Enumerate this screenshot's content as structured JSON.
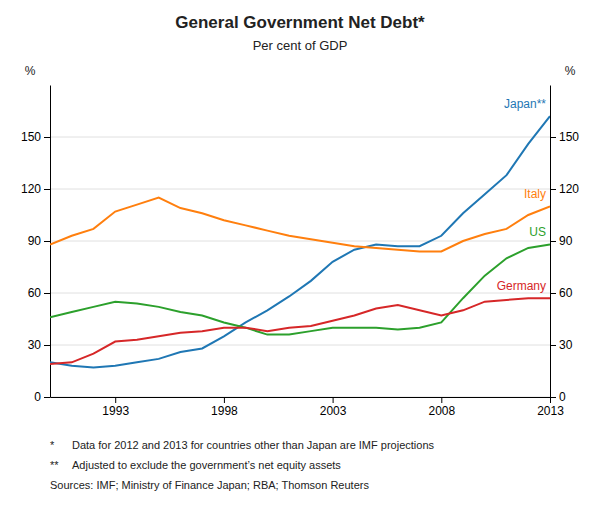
{
  "chart_data": {
    "type": "line",
    "title": "General Government Net Debt*",
    "subtitle": "Per cent of GDP",
    "ylabel": "%",
    "y2label": "%",
    "x": [
      1990,
      1991,
      1992,
      1993,
      1994,
      1995,
      1996,
      1997,
      1998,
      1999,
      2000,
      2001,
      2002,
      2003,
      2004,
      2005,
      2006,
      2007,
      2008,
      2009,
      2010,
      2011,
      2012,
      2013
    ],
    "xlim": [
      1990,
      2013
    ],
    "xticks": [
      1993,
      1998,
      2003,
      2008,
      2013
    ],
    "ylim": [
      0,
      180
    ],
    "yticks": [
      0,
      30,
      60,
      90,
      120,
      150
    ],
    "y2lim": [
      0,
      180
    ],
    "y2ticks": [
      0,
      30,
      60,
      90,
      120,
      150
    ],
    "grid": true,
    "series": [
      {
        "name": "Japan**",
        "values": [
          20,
          18,
          17,
          18,
          20,
          22,
          26,
          28,
          35,
          43,
          50,
          58,
          67,
          78,
          85,
          88,
          87,
          87,
          93,
          106,
          117,
          128,
          146,
          162
        ]
      },
      {
        "name": "Italy",
        "values": [
          88,
          93,
          97,
          107,
          111,
          115,
          109,
          106,
          102,
          99,
          96,
          93,
          91,
          89,
          87,
          86,
          85,
          84,
          84,
          90,
          94,
          97,
          105,
          110
        ]
      },
      {
        "name": "US",
        "values": [
          46,
          49,
          52,
          55,
          54,
          52,
          49,
          47,
          43,
          40,
          36,
          36,
          38,
          40,
          40,
          40,
          39,
          40,
          43,
          57,
          70,
          80,
          86,
          88
        ]
      },
      {
        "name": "Germany",
        "values": [
          19,
          20,
          25,
          32,
          33,
          35,
          37,
          38,
          40,
          40,
          38,
          40,
          41,
          44,
          47,
          51,
          53,
          50,
          47,
          50,
          55,
          56,
          57,
          57
        ]
      }
    ],
    "annotations": [
      {
        "bullet": "*",
        "text": "Data for 2012 and 2013 for countries other than Japan are IMF projections"
      },
      {
        "bullet": "**",
        "text": "Adjusted to exclude the government’s net equity assets"
      },
      {
        "text": "Sources: IMF; Ministry of Finance Japan; RBA; Thomson Reuters"
      }
    ]
  }
}
